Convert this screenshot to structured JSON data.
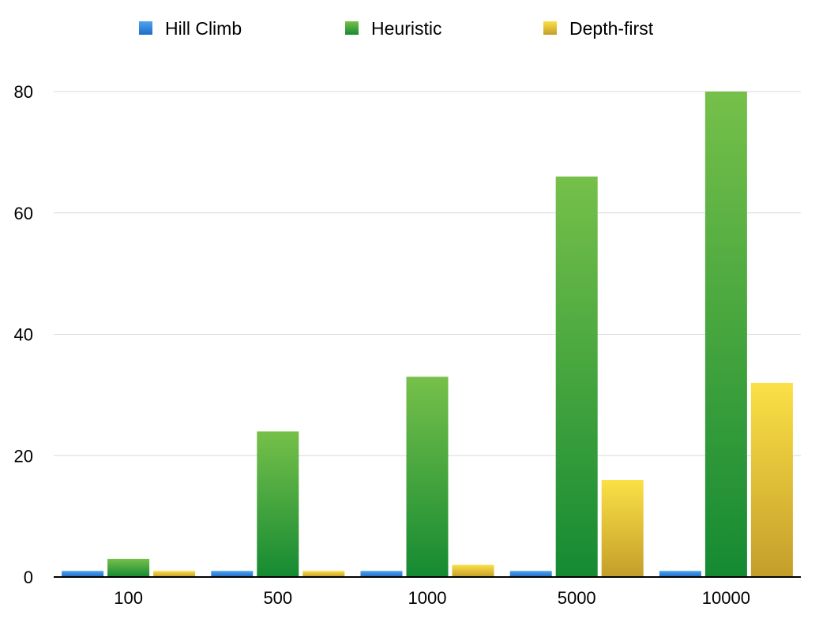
{
  "chart_data": {
    "type": "bar",
    "categories": [
      "100",
      "500",
      "1000",
      "5000",
      "10000"
    ],
    "series": [
      {
        "name": "Hill Climb",
        "values": [
          1,
          1,
          1,
          1,
          1
        ],
        "color": "#2f7fd8"
      },
      {
        "name": "Heuristic",
        "values": [
          3,
          24,
          33,
          66,
          80
        ],
        "color": "#3ba140"
      },
      {
        "name": "Depth-first",
        "values": [
          1,
          1,
          2,
          16,
          32
        ],
        "color": "#e6c634"
      }
    ],
    "yticks": [
      "0",
      "20",
      "40",
      "60",
      "80"
    ],
    "ylim": [
      0,
      80
    ],
    "grid": true,
    "legend_position": "top"
  }
}
